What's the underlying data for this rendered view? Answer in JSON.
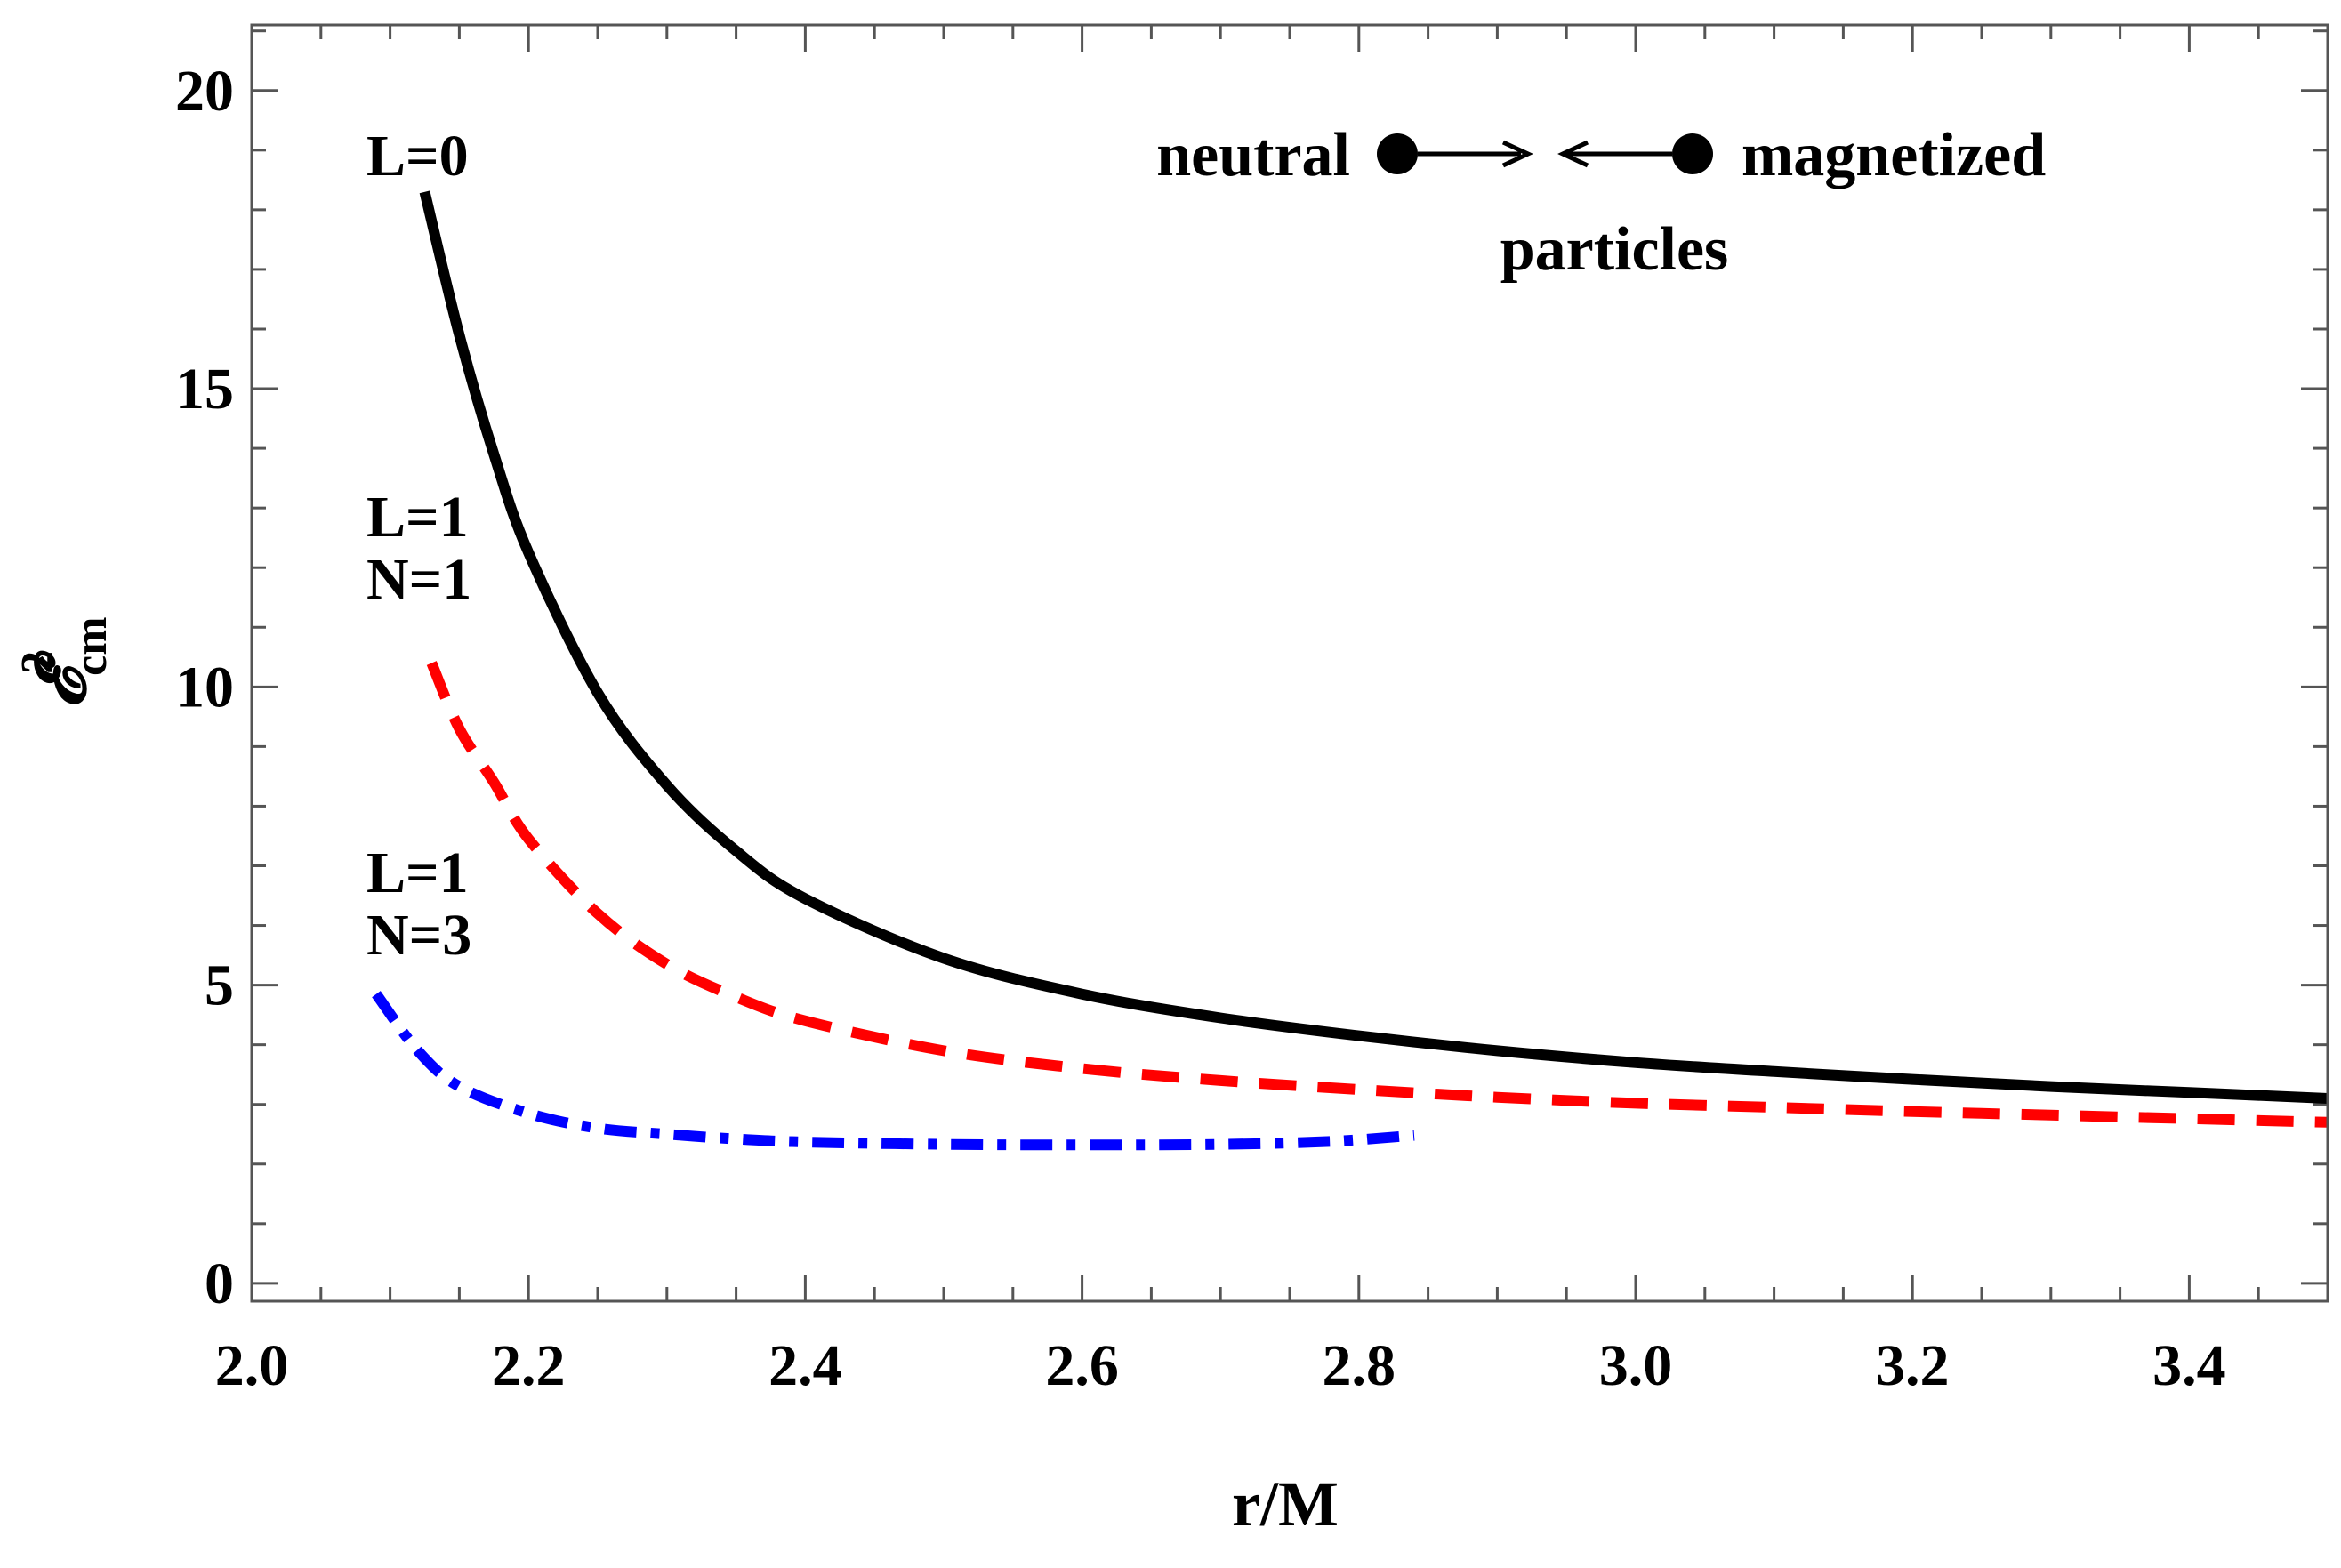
{
  "chart_data": {
    "type": "line",
    "title": "",
    "xlabel": "r/M",
    "ylabel": "𝓔",
    "ylabel_sup": "2",
    "ylabel_sub": "cm",
    "xlim": [
      2.0,
      3.5
    ],
    "ylim": [
      -0.3,
      21.1
    ],
    "x_ticks": [
      2.0,
      2.2,
      2.4,
      2.6,
      2.8,
      3.0,
      3.2,
      3.4
    ],
    "x_tick_labels": [
      "2.0",
      "2.2",
      "2.4",
      "2.6",
      "2.8",
      "3.0",
      "3.2",
      "3.4"
    ],
    "y_ticks": [
      0,
      5,
      10,
      15,
      20
    ],
    "y_tick_labels": [
      "0",
      "5",
      "10",
      "15",
      "20"
    ],
    "grid": false,
    "legend": {
      "left_text": "neutral",
      "right_text": "magnetized",
      "bottom_text": "particles",
      "placement": "top-right"
    },
    "series": [
      {
        "name": "L=0",
        "label_lines": [
          "L=0"
        ],
        "color": "#000000",
        "style": "solid",
        "x": [
          2.125,
          2.15,
          2.175,
          2.2,
          2.25,
          2.3,
          2.35,
          2.4,
          2.5,
          2.6,
          2.7,
          2.8,
          2.9,
          3.0,
          3.1,
          3.2,
          3.3,
          3.4,
          3.5
        ],
        "y": [
          18.3,
          15.9,
          13.9,
          12.25,
          9.9,
          8.35,
          7.25,
          6.45,
          5.45,
          4.85,
          4.45,
          4.15,
          3.9,
          3.7,
          3.55,
          3.42,
          3.3,
          3.2,
          3.1
        ]
      },
      {
        "name": "L=1 N=1",
        "label_lines": [
          "L=1",
          "N=1"
        ],
        "color": "#ff0000",
        "style": "dashed",
        "x": [
          2.13,
          2.15,
          2.175,
          2.2,
          2.25,
          2.3,
          2.35,
          2.4,
          2.5,
          2.6,
          2.7,
          2.8,
          2.9,
          3.0,
          3.1,
          3.2,
          3.3,
          3.4,
          3.5
        ],
        "y": [
          10.4,
          9.3,
          8.4,
          7.45,
          6.2,
          5.35,
          4.8,
          4.4,
          3.9,
          3.6,
          3.4,
          3.25,
          3.12,
          3.02,
          2.95,
          2.88,
          2.82,
          2.76,
          2.7
        ]
      },
      {
        "name": "L=1 N=3",
        "label_lines": [
          "L=1",
          "N=3"
        ],
        "color": "#0000ff",
        "style": "dashdot",
        "x": [
          2.09,
          2.12,
          2.15,
          2.2,
          2.25,
          2.3,
          2.35,
          2.4,
          2.5,
          2.6,
          2.7,
          2.78,
          2.84
        ],
        "y": [
          4.85,
          3.9,
          3.3,
          2.85,
          2.6,
          2.5,
          2.42,
          2.37,
          2.33,
          2.32,
          2.33,
          2.38,
          2.48
        ]
      }
    ]
  }
}
